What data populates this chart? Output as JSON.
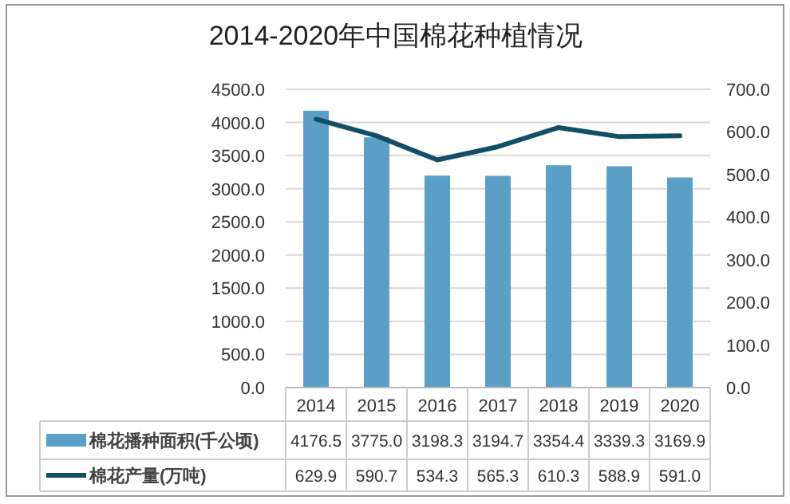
{
  "chart_data": {
    "type": "bar",
    "title": "2014-2020年中国棉花种植情况",
    "categories": [
      "2014",
      "2015",
      "2016",
      "2017",
      "2018",
      "2019",
      "2020"
    ],
    "series": [
      {
        "name": "棉花播种面积(千公顷)",
        "color": "#5b9fc6",
        "values": [
          4176.5,
          3775.0,
          3198.3,
          3194.7,
          3354.4,
          3339.3,
          3169.9
        ],
        "value_labels": [
          "4176.5",
          "3775.0",
          "3198.3",
          "3194.7",
          "3354.4",
          "3339.3",
          "3169.9"
        ]
      },
      {
        "name": "棉花产量(万吨)",
        "type": "line",
        "axis": "y2",
        "color": "#124e66",
        "values": [
          629.9,
          590.7,
          534.3,
          565.3,
          610.3,
          588.9,
          591.0
        ],
        "value_labels": [
          "629.9",
          "590.7",
          "534.3",
          "565.3",
          "610.3",
          "588.9",
          "591.0"
        ]
      }
    ],
    "ylim": [
      0,
      4500
    ],
    "yticks": [
      {
        "value": 0,
        "label": "0.0"
      },
      {
        "value": 500,
        "label": "500.0"
      },
      {
        "value": 1000,
        "label": "1000.0"
      },
      {
        "value": 1500,
        "label": "1500.0"
      },
      {
        "value": 2000,
        "label": "2000.0"
      },
      {
        "value": 2500,
        "label": "2500.0"
      },
      {
        "value": 3000,
        "label": "3000.0"
      },
      {
        "value": 3500,
        "label": "3500.0"
      },
      {
        "value": 4000,
        "label": "4000.0"
      },
      {
        "value": 4500,
        "label": "4500.0"
      }
    ],
    "y2lim": [
      0,
      700
    ],
    "y2ticks": [
      {
        "value": 0,
        "label": "0.0"
      },
      {
        "value": 100,
        "label": "100.0"
      },
      {
        "value": 200,
        "label": "200.0"
      },
      {
        "value": 300,
        "label": "300.0"
      },
      {
        "value": 400,
        "label": "400.0"
      },
      {
        "value": 500,
        "label": "500.0"
      },
      {
        "value": 600,
        "label": "600.0"
      },
      {
        "value": 700,
        "label": "700.0"
      }
    ],
    "grid": "y",
    "legend": "bottom"
  }
}
